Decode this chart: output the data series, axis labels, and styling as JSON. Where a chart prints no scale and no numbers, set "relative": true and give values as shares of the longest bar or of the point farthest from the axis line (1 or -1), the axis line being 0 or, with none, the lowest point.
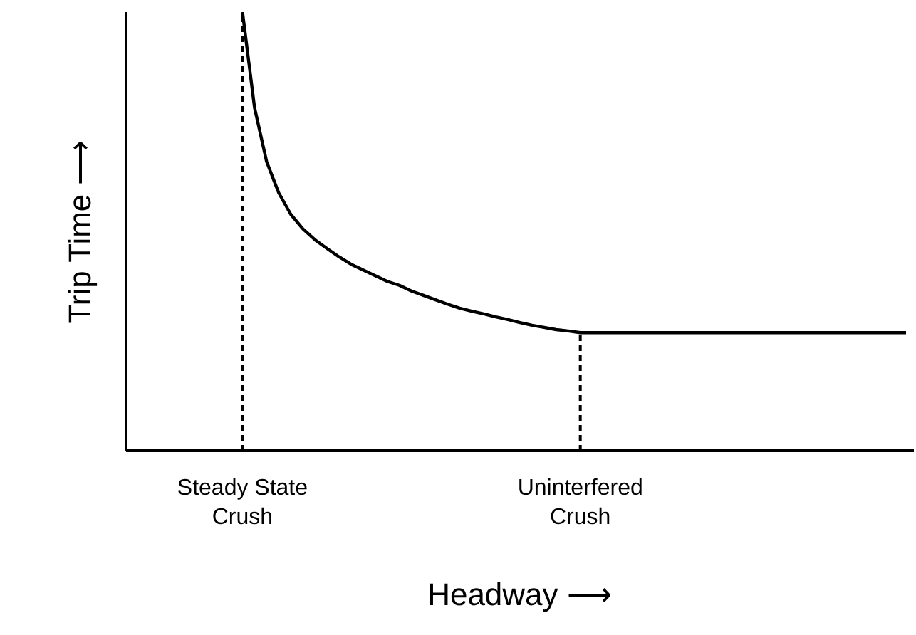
{
  "chart_data": {
    "type": "line",
    "relative": true,
    "xlabel": "Headway ⟶",
    "ylabel": "Trip Time ⟶",
    "tick_labels": "x",
    "grid": false,
    "marker": "none",
    "line_style": "solid",
    "categories": [
      null,
      null,
      null,
      null,
      null,
      null,
      null,
      null,
      null,
      "Steady State\nCrush",
      null,
      null,
      null,
      null,
      null,
      null,
      null,
      null,
      null,
      null,
      null,
      null,
      null,
      null,
      null,
      null,
      null,
      null,
      null,
      null,
      null,
      null,
      null,
      null,
      null,
      null,
      null,
      "Uninterfered\nCrush",
      null,
      null,
      null,
      null,
      null,
      null,
      null,
      null,
      null,
      null,
      null,
      null,
      null,
      null,
      null,
      null,
      null,
      null,
      null,
      null,
      null,
      null,
      null,
      null,
      null,
      null,
      null
    ],
    "series": [
      {
        "color": "#000000",
        "values": [
          null,
          null,
          null,
          null,
          null,
          null,
          null,
          null,
          null,
          1.0,
          0.782,
          0.659,
          0.588,
          0.539,
          0.506,
          0.481,
          0.461,
          0.442,
          0.425,
          0.412,
          0.399,
          0.386,
          0.377,
          0.364,
          0.354,
          0.344,
          0.334,
          0.325,
          0.318,
          0.312,
          0.305,
          0.299,
          0.292,
          0.286,
          0.281,
          0.276,
          0.273,
          0.269,
          0.269,
          0.269,
          0.269,
          0.269,
          0.269,
          0.269,
          0.269,
          0.269,
          0.269,
          0.269,
          0.269,
          0.269,
          0.269,
          0.269,
          0.269,
          0.269,
          0.269,
          0.269,
          0.269,
          0.269,
          0.269,
          0.269,
          0.269,
          0.269,
          0.269,
          0.269,
          0.269
        ]
      }
    ],
    "ref_lines": [
      {
        "axis": "x",
        "value": "Steady State\nCrush",
        "line_style": "dashed",
        "color": "#000000"
      },
      {
        "axis": "x",
        "value": "Uninterfered\nCrush",
        "line_style": "dashed",
        "color": "#000000"
      }
    ]
  }
}
